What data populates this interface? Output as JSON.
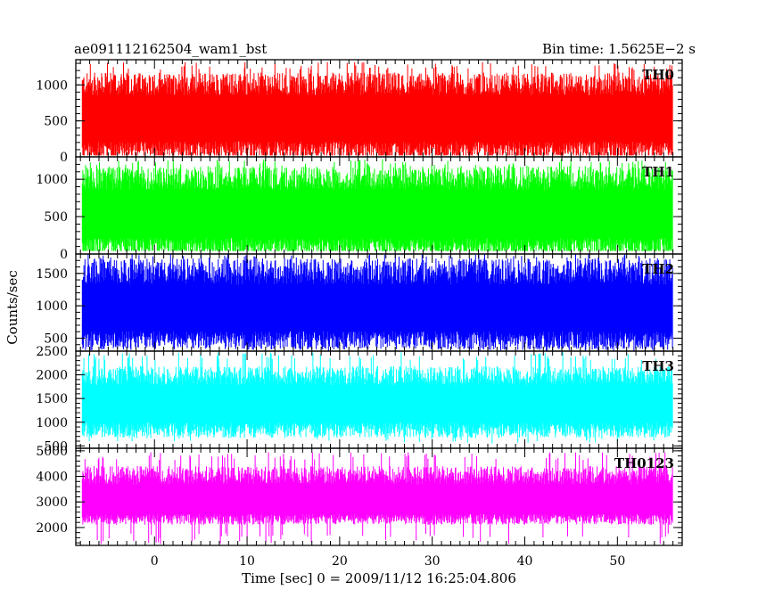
{
  "header": {
    "title": "ae091112162504_wam1_bst",
    "bin_time": "Bin time: 1.5625E−2 s"
  },
  "chart_data": {
    "type": "line",
    "xlabel": "Time [sec] 0 = 2009/11/12 16:25:04.806",
    "ylabel": "Counts/sec",
    "xlim": [
      -8.5,
      57
    ],
    "x_data_range": [
      -7.8,
      56
    ],
    "x_ticks": [
      0,
      10,
      20,
      30,
      40,
      50
    ],
    "grid": false,
    "panels": [
      {
        "name": "TH0",
        "color": "#ff0000",
        "ylim": [
          0,
          1350
        ],
        "y_ticks": [
          0,
          500,
          1000
        ],
        "band": [
          130,
          600,
          950
        ],
        "spike_lo": 20,
        "spike_hi": 1320
      },
      {
        "name": "TH1",
        "color": "#00ff00",
        "ylim": [
          0,
          1300
        ],
        "y_ticks": [
          0,
          500,
          1000
        ],
        "band": [
          130,
          600,
          950
        ],
        "spike_lo": 40,
        "spike_hi": 1270
      },
      {
        "name": "TH2",
        "color": "#0000ff",
        "ylim": [
          300,
          1800
        ],
        "y_ticks": [
          500,
          1000,
          1500
        ],
        "band": [
          520,
          1000,
          1450
        ],
        "spike_lo": 300,
        "spike_hi": 1800
      },
      {
        "name": "TH3",
        "color": "#00ffff",
        "ylim": [
          450,
          2500
        ],
        "y_ticks": [
          500,
          1000,
          1500,
          2000,
          2500
        ],
        "band": [
          900,
          1450,
          1900
        ],
        "spike_lo": 550,
        "spike_hi": 2480
      },
      {
        "name": "TH0123",
        "color": "#ff00ff",
        "ylim": [
          1300,
          5100
        ],
        "y_ticks": [
          2000,
          3000,
          4000,
          5000
        ],
        "band": [
          2400,
          3100,
          3900
        ],
        "spike_lo": 1350,
        "spike_hi": 4950
      }
    ]
  }
}
